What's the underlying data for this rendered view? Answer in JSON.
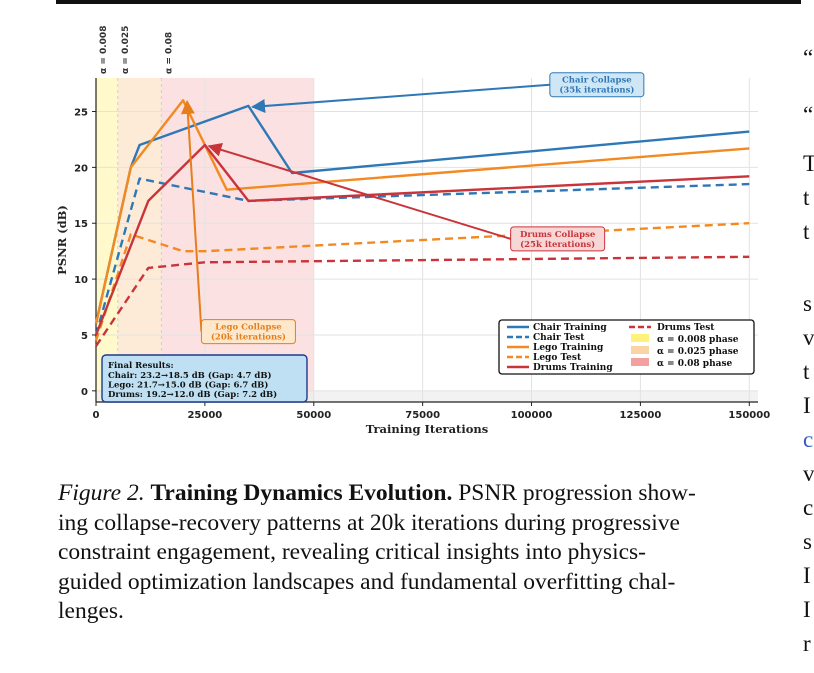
{
  "chart_data": {
    "type": "line",
    "xlabel": "Training Iterations",
    "ylabel": "PSNR (dB)",
    "xlim": [
      0,
      152000
    ],
    "ylim": [
      -1,
      28
    ],
    "xticks": [
      0,
      25000,
      50000,
      75000,
      100000,
      125000,
      150000
    ],
    "yticks": [
      0,
      5,
      10,
      15,
      20,
      25
    ],
    "grid": true,
    "legend_position": "bottom-right",
    "phases": [
      {
        "label": "α = 0.008 phase",
        "alpha": "α = 0.008",
        "start": 0,
        "end": 5000,
        "color": "#fff9cc"
      },
      {
        "label": "α = 0.025 phase",
        "alpha": "α = 0.025",
        "start": 5000,
        "end": 15000,
        "color": "#fdebd7"
      },
      {
        "label": "α = 0.08 phase",
        "alpha": "α = 0.08",
        "start": 15000,
        "end": 50000,
        "color": "#fbe1e1"
      }
    ],
    "series": [
      {
        "name": "Chair Training",
        "color": "#2e78b7",
        "dash": false,
        "points": [
          [
            0,
            6
          ],
          [
            8000,
            20
          ],
          [
            10000,
            22
          ],
          [
            35000,
            25.5
          ],
          [
            45000,
            19.5
          ],
          [
            150000,
            23.2
          ]
        ]
      },
      {
        "name": "Chair Test",
        "color": "#2e78b7",
        "dash": true,
        "points": [
          [
            0,
            5
          ],
          [
            10000,
            19
          ],
          [
            35000,
            17
          ],
          [
            150000,
            18.5
          ]
        ]
      },
      {
        "name": "Lego Training",
        "color": "#f28a21",
        "dash": false,
        "points": [
          [
            0,
            6
          ],
          [
            8000,
            20
          ],
          [
            20000,
            26
          ],
          [
            30000,
            18
          ],
          [
            150000,
            21.7
          ]
        ]
      },
      {
        "name": "Lego Test",
        "color": "#f28a21",
        "dash": true,
        "points": [
          [
            0,
            4.5
          ],
          [
            8000,
            14
          ],
          [
            20000,
            12.5
          ],
          [
            25000,
            12.5
          ],
          [
            150000,
            15
          ]
        ]
      },
      {
        "name": "Drums Training",
        "color": "#c9343a",
        "dash": false,
        "points": [
          [
            0,
            5
          ],
          [
            12000,
            17
          ],
          [
            25000,
            22
          ],
          [
            35000,
            17
          ],
          [
            150000,
            19.2
          ]
        ]
      },
      {
        "name": "Drums Test",
        "color": "#c9343a",
        "dash": true,
        "points": [
          [
            0,
            4
          ],
          [
            12000,
            11
          ],
          [
            25000,
            11.5
          ],
          [
            150000,
            12
          ]
        ]
      }
    ],
    "annotations": [
      {
        "lines": [
          "Chair Collapse",
          "(35k iterations)"
        ],
        "color": "#2e78b7",
        "bg": "#cfe6f4",
        "box": [
          115000,
          27.4
        ],
        "target": [
          35000,
          25.5
        ]
      },
      {
        "lines": [
          "Lego Collapse",
          "(20k iterations)"
        ],
        "color": "#e67e1b",
        "bg": "#fde8cc",
        "box": [
          35000,
          5.3
        ],
        "target": [
          20000,
          26
        ]
      },
      {
        "lines": [
          "Drums Collapse",
          "(25k iterations)"
        ],
        "color": "#c9343a",
        "bg": "#f7d6d6",
        "box": [
          106000,
          13.6
        ],
        "target": [
          25000,
          22
        ]
      }
    ],
    "results": {
      "title": "Final Results:",
      "lines": [
        "Chair: 23.2→18.5 dB (Gap: 4.7 dB)",
        "Lego: 21.7→15.0 dB (Gap: 6.7 dB)",
        "Drums: 19.2→12.0 dB (Gap: 7.2 dB)"
      ]
    }
  },
  "caption": {
    "label": "Figure 2.",
    "title": "Training Dynamics Evolution.",
    "lines": [
      "PSNR progression show-",
      "ing collapse-recovery patterns at 20k iterations during progressive",
      "constraint engagement, revealing critical insights into physics-",
      "guided optimization landscapes and fundamental overfitting chal-",
      "lenges."
    ]
  },
  "right_column": {
    "fragments": [
      "“",
      "“",
      "T",
      "t",
      "t",
      "s",
      "v",
      "t",
      "I",
      "c",
      "v",
      "c",
      "s",
      "I",
      "I",
      "r"
    ]
  }
}
